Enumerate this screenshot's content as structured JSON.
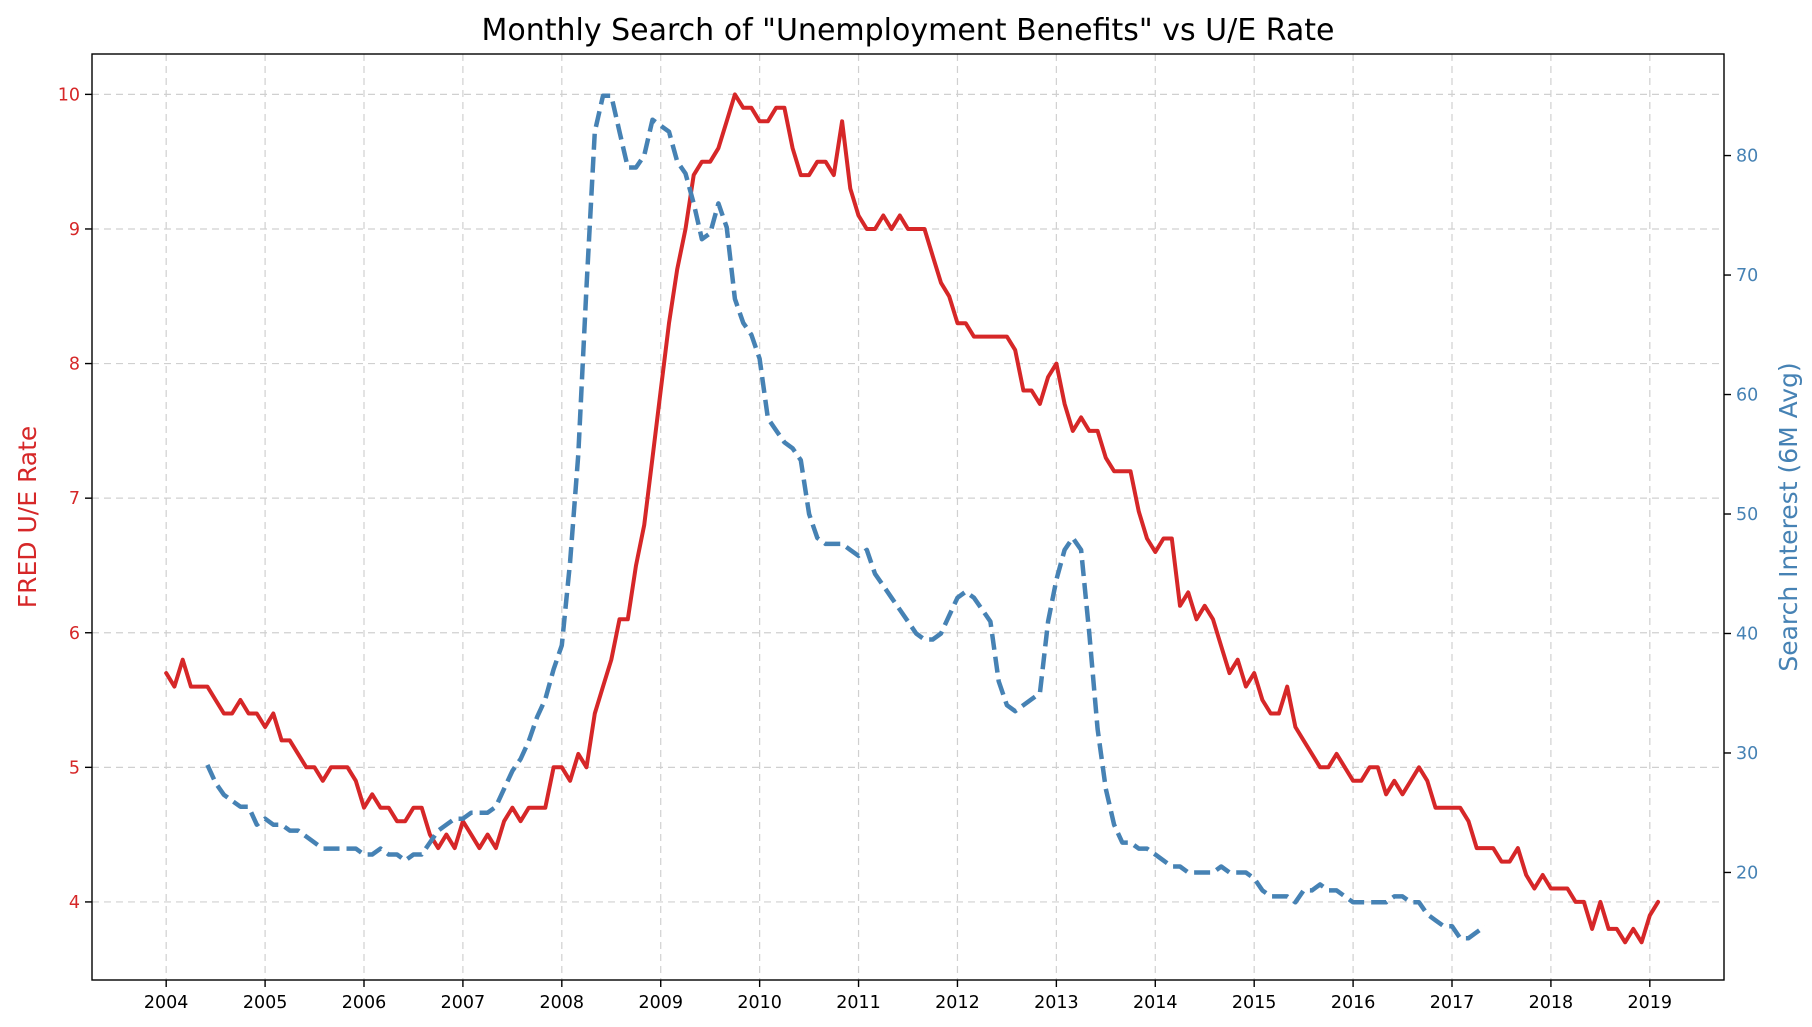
{
  "chart_data": {
    "type": "line",
    "title": "Monthly Search of \"Unemployment Benefits\" vs U/E Rate",
    "xlabel": "",
    "ylabel_left": "FRED U/E Rate",
    "ylabel_right": "Search Interest (6M Avg)",
    "x_range": [
      2003.25,
      2019.75
    ],
    "x_ticks": [
      "2004",
      "2005",
      "2006",
      "2007",
      "2008",
      "2009",
      "2010",
      "2011",
      "2012",
      "2013",
      "2014",
      "2015",
      "2016",
      "2017",
      "2018",
      "2019"
    ],
    "y_left_range": [
      3.42,
      10.3
    ],
    "y_left_ticks": [
      "4",
      "5",
      "6",
      "7",
      "8",
      "9",
      "10"
    ],
    "y_right_range": [
      11.0,
      88.5
    ],
    "y_right_ticks": [
      "20",
      "30",
      "40",
      "50",
      "60",
      "70",
      "80"
    ],
    "grid": true,
    "colors": {
      "unemployment": "#d62728",
      "search": "#4682b4"
    },
    "series": [
      {
        "axis": "left",
        "style": "solid",
        "start": "2004-01",
        "step": "1 month",
        "values": [
          5.7,
          5.6,
          5.8,
          5.6,
          5.6,
          5.6,
          5.5,
          5.4,
          5.4,
          5.5,
          5.4,
          5.4,
          5.3,
          5.4,
          5.2,
          5.2,
          5.1,
          5.0,
          5.0,
          4.9,
          5.0,
          5.0,
          5.0,
          4.9,
          4.7,
          4.8,
          4.7,
          4.7,
          4.6,
          4.6,
          4.7,
          4.7,
          4.5,
          4.4,
          4.5,
          4.4,
          4.6,
          4.5,
          4.4,
          4.5,
          4.4,
          4.6,
          4.7,
          4.6,
          4.7,
          4.7,
          4.7,
          5.0,
          5.0,
          4.9,
          5.1,
          5.0,
          5.4,
          5.6,
          5.8,
          6.1,
          6.1,
          6.5,
          6.8,
          7.3,
          7.8,
          8.3,
          8.7,
          9.0,
          9.4,
          9.5,
          9.5,
          9.6,
          9.8,
          10.0,
          9.9,
          9.9,
          9.8,
          9.8,
          9.9,
          9.9,
          9.6,
          9.4,
          9.4,
          9.5,
          9.5,
          9.4,
          9.8,
          9.3,
          9.1,
          9.0,
          9.0,
          9.1,
          9.0,
          9.1,
          9.0,
          9.0,
          9.0,
          8.8,
          8.6,
          8.5,
          8.3,
          8.3,
          8.2,
          8.2,
          8.2,
          8.2,
          8.2,
          8.1,
          7.8,
          7.8,
          7.7,
          7.9,
          8.0,
          7.7,
          7.5,
          7.6,
          7.5,
          7.5,
          7.3,
          7.2,
          7.2,
          7.2,
          6.9,
          6.7,
          6.6,
          6.7,
          6.7,
          6.2,
          6.3,
          6.1,
          6.2,
          6.1,
          5.9,
          5.7,
          5.8,
          5.6,
          5.7,
          5.5,
          5.4,
          5.4,
          5.6,
          5.3,
          5.2,
          5.1,
          5.0,
          5.0,
          5.1,
          5.0,
          4.9,
          4.9,
          5.0,
          5.0,
          4.8,
          4.9,
          4.8,
          4.9,
          5.0,
          4.9,
          4.7,
          4.7,
          4.7,
          4.7,
          4.6,
          4.4,
          4.4,
          4.4,
          4.3,
          4.3,
          4.4,
          4.2,
          4.1,
          4.2,
          4.1,
          4.1,
          4.1,
          4.0,
          4.0,
          3.8,
          4.0,
          3.8,
          3.8,
          3.7,
          3.8,
          3.7,
          3.9,
          4.0
        ]
      },
      {
        "axis": "right",
        "style": "dashed",
        "start": "2004-06",
        "step": "1 month",
        "values": [
          29,
          27.5,
          26.5,
          26,
          25.5,
          25.5,
          24,
          24.5,
          24,
          24,
          23.5,
          23.5,
          23,
          22.5,
          22,
          22,
          22,
          22,
          22,
          21.5,
          21.5,
          22,
          21.5,
          21.5,
          21,
          21.5,
          21.5,
          22.5,
          23.5,
          24,
          24.5,
          24.5,
          25,
          25,
          25,
          25.5,
          27,
          28.5,
          29.5,
          31,
          33,
          34.5,
          37,
          39,
          46,
          55,
          69,
          82,
          85,
          85,
          82,
          79,
          79,
          80,
          83,
          82.5,
          82,
          79.5,
          78.5,
          76,
          73,
          73.5,
          76,
          74,
          68,
          66,
          65,
          63,
          58,
          57,
          56,
          55.5,
          54.5,
          50,
          48,
          47.5,
          47.5,
          47.5,
          47,
          46.5,
          47,
          45,
          44,
          43,
          42,
          41,
          40,
          39.5,
          39.5,
          40,
          41.5,
          43,
          43.5,
          43,
          42,
          41,
          36,
          34,
          33.5,
          34,
          34.5,
          35,
          41,
          44.5,
          47,
          48,
          47,
          40,
          32,
          27,
          24,
          22.5,
          22.5,
          22,
          22,
          21.5,
          21,
          20.5,
          20.5,
          20,
          20,
          20,
          20,
          20.5,
          20,
          20,
          20,
          19.5,
          18.5,
          18,
          18,
          18,
          17.5,
          18.5,
          18.5,
          19,
          18.5,
          18.5,
          18,
          17.5,
          17.5,
          17.5,
          17.5,
          17.5,
          18,
          18,
          17.5,
          17.5,
          16.5,
          16,
          15.5,
          15.5,
          14.5,
          14.5,
          15,
          15.5
        ]
      }
    ]
  }
}
